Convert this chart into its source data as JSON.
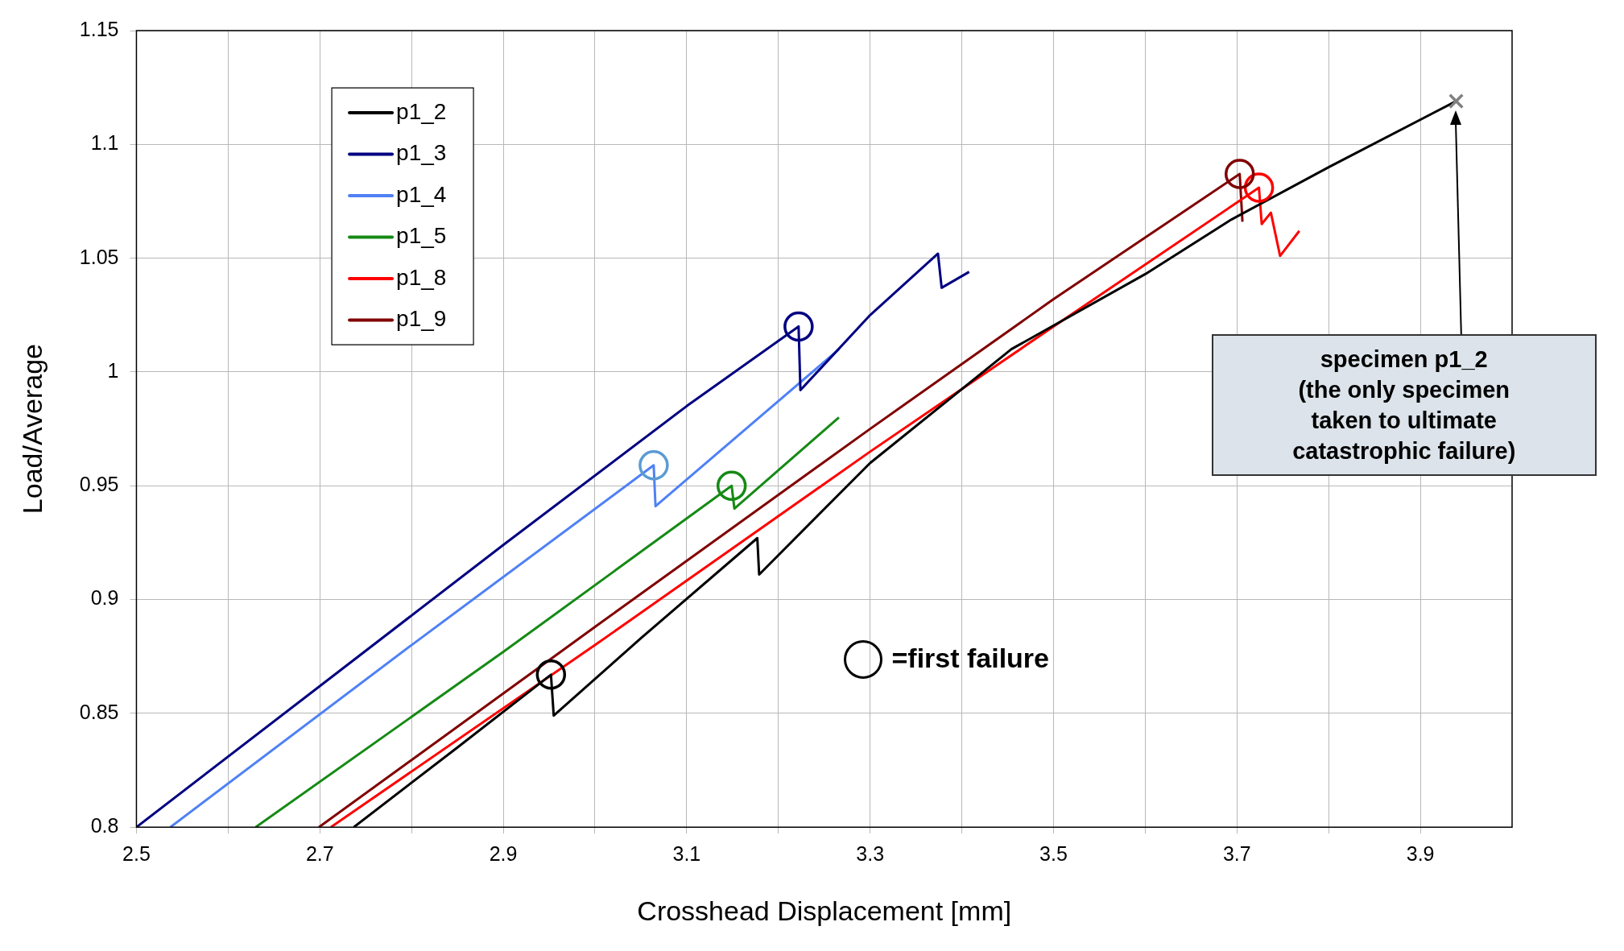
{
  "chart_data": {
    "type": "line",
    "xlabel": "Crosshead Displacement [mm]",
    "ylabel": "Load/Average",
    "xlim": [
      2.5,
      4.0
    ],
    "ylim": [
      0.8,
      1.15
    ],
    "xticks": [
      2.5,
      {
        "value": 2.6,
        "label": null
      },
      2.7,
      {
        "value": 2.8,
        "label": null
      },
      2.9,
      {
        "value": 3.0,
        "label": null
      },
      3.1,
      {
        "value": 3.2,
        "label": null
      },
      3.3,
      {
        "value": 3.4,
        "label": null
      },
      3.5,
      {
        "value": 3.6,
        "label": null
      },
      3.7,
      {
        "value": 3.8,
        "label": null
      },
      3.9
    ],
    "yticks": [
      0.8,
      0.85,
      0.9,
      0.95,
      1,
      1.05,
      1.1,
      1.15
    ],
    "grid": true,
    "legend": "top left",
    "marker": "none",
    "line_style": "solid",
    "series": [
      {
        "name": "p1_2",
        "color": "#000000",
        "x": [
          2.737,
          2.85,
          2.952,
          2.955,
          3.05,
          3.177,
          3.179,
          3.3,
          3.454,
          3.6,
          3.694,
          3.8,
          3.939
        ],
        "values": [
          0.8,
          0.835,
          0.867,
          0.849,
          0.883,
          0.927,
          0.911,
          0.96,
          1.01,
          1.043,
          1.067,
          1.09,
          1.119
        ]
      },
      {
        "name": "p1_3",
        "color": "#000080",
        "x": [
          2.5,
          2.7,
          2.9,
          3.1,
          3.222,
          3.224,
          3.3,
          3.374,
          3.378,
          3.408
        ],
        "values": [
          0.8,
          0.862,
          0.924,
          0.985,
          1.02,
          0.992,
          1.025,
          1.052,
          1.037,
          1.044
        ]
      },
      {
        "name": "p1_4",
        "color": "#4f81f5",
        "x": [
          2.537,
          2.8,
          3.064,
          3.066,
          3.266
        ],
        "values": [
          0.8,
          0.88,
          0.959,
          0.941,
          1.01
        ]
      },
      {
        "name": "p1_5",
        "color": "#158a15",
        "x": [
          2.63,
          2.9,
          3.149,
          3.152,
          3.266
        ],
        "values": [
          0.8,
          0.877,
          0.95,
          0.94,
          0.98
        ]
      },
      {
        "name": "p1_8",
        "color": "#ff0000",
        "x": [
          2.712,
          3.0,
          3.3,
          3.5,
          3.724,
          3.727,
          3.737,
          3.747,
          3.768
        ],
        "values": [
          0.8,
          0.88,
          0.965,
          1.02,
          1.081,
          1.065,
          1.07,
          1.051,
          1.062
        ]
      },
      {
        "name": "p1_9",
        "color": "#800000",
        "x": [
          2.699,
          3.0,
          3.3,
          3.5,
          3.703,
          3.706
        ],
        "values": [
          0.8,
          0.888,
          0.975,
          1.032,
          1.087,
          1.066
        ]
      },
      {
        "type": "scatter",
        "marker": "circle",
        "colors": [
          "#000000",
          "#000080",
          "#5b9bd5",
          "#158a15",
          "#ff0000",
          "#800000"
        ],
        "x": [
          2.952,
          3.222,
          3.064,
          3.149,
          3.724,
          3.703
        ],
        "values": [
          0.867,
          1.02,
          0.959,
          0.95,
          1.081,
          1.087
        ]
      },
      {
        "type": "scatter",
        "marker": "cross",
        "color": "#808080",
        "x": [
          3.939
        ],
        "values": [
          1.119
        ]
      }
    ],
    "annotations": [
      "=first failure",
      "specimen p1_2\n(the only specimen\ntaken to ultimate\ncatastrophic failure)"
    ]
  }
}
